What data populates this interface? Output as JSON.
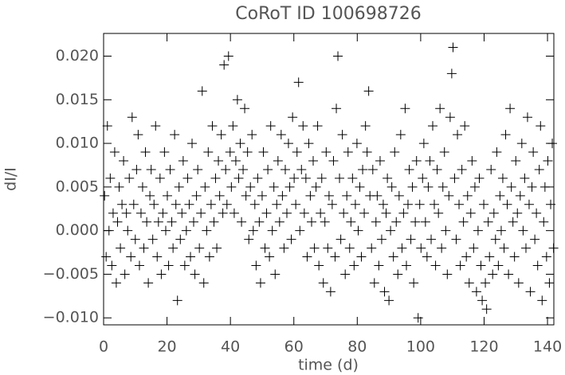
{
  "chart_data": {
    "type": "scatter",
    "title": "CoRoT ID 100698726",
    "xlabel": "time (d)",
    "ylabel": "dI/I",
    "color": "#000000",
    "marker": "plus",
    "xlim": [
      0,
      142
    ],
    "xticks": [
      0,
      20,
      40,
      60,
      80,
      100,
      120,
      140
    ],
    "ylim": [
      -0.0108,
      0.0226
    ],
    "yticks": [
      {
        "value": -0.01,
        "label": "−0.010"
      },
      {
        "value": -0.005,
        "label": "−0.005"
      },
      {
        "value": 0,
        "label": "0.000"
      },
      {
        "value": 0.005,
        "label": "0.005"
      },
      {
        "value": 0.01,
        "label": "0.010"
      },
      {
        "value": 0.015,
        "label": "0.015"
      },
      {
        "value": 0.02,
        "label": "0.020"
      }
    ],
    "x": [
      0.3,
      0.8,
      1.2,
      1.7,
      2.1,
      2.6,
      3.0,
      3.5,
      4.0,
      4.4,
      4.9,
      5.3,
      5.8,
      6.3,
      6.7,
      7.2,
      7.6,
      8.1,
      8.6,
      9.0,
      9.5,
      10.0,
      10.4,
      10.9,
      11.3,
      11.8,
      12.3,
      12.7,
      13.2,
      13.6,
      14.1,
      14.6,
      15.0,
      15.5,
      15.9,
      16.4,
      16.9,
      17.3,
      17.8,
      18.2,
      18.7,
      19.2,
      19.6,
      20.1,
      20.5,
      21.0,
      21.5,
      21.9,
      22.4,
      22.8,
      23.3,
      23.8,
      24.2,
      24.7,
      25.1,
      25.6,
      26.1,
      26.5,
      27.0,
      27.4,
      27.9,
      28.4,
      28.8,
      29.3,
      29.7,
      30.2,
      30.7,
      31.1,
      31.6,
      32.0,
      32.5,
      33.0,
      33.4,
      33.9,
      34.3,
      34.8,
      35.3,
      35.7,
      36.2,
      36.6,
      37.1,
      37.6,
      38.0,
      38.5,
      38.9,
      39.4,
      39.9,
      40.3,
      40.8,
      41.2,
      41.7,
      42.2,
      42.6,
      43.1,
      43.5,
      44.0,
      44.5,
      44.9,
      45.4,
      45.8,
      46.3,
      46.8,
      47.2,
      47.7,
      48.1,
      48.6,
      49.1,
      49.5,
      50.0,
      50.4,
      50.9,
      51.4,
      51.8,
      52.3,
      52.7,
      53.2,
      53.7,
      54.1,
      54.6,
      55.0,
      55.5,
      56.0,
      56.4,
      56.9,
      57.3,
      57.8,
      58.3,
      58.7,
      59.2,
      59.6,
      60.1,
      60.6,
      61.0,
      61.5,
      61.9,
      62.4,
      62.9,
      63.3,
      63.8,
      64.2,
      64.7,
      65.2,
      65.6,
      66.1,
      66.5,
      67.0,
      67.5,
      67.9,
      68.4,
      68.8,
      69.3,
      69.8,
      70.2,
      70.7,
      71.1,
      71.6,
      72.1,
      72.5,
      73.0,
      73.4,
      73.9,
      74.4,
      74.8,
      75.3,
      75.7,
      76.2,
      76.7,
      77.1,
      77.6,
      78.0,
      78.5,
      79.0,
      79.4,
      79.9,
      80.3,
      80.8,
      81.3,
      81.7,
      82.2,
      82.6,
      83.1,
      83.6,
      84.0,
      84.5,
      84.9,
      85.4,
      85.9,
      86.3,
      86.8,
      87.2,
      87.7,
      88.2,
      88.6,
      89.1,
      89.5,
      90.0,
      90.5,
      90.9,
      91.4,
      91.8,
      92.3,
      92.8,
      93.2,
      93.7,
      94.1,
      94.6,
      95.1,
      95.5,
      96.0,
      96.4,
      96.9,
      97.4,
      97.8,
      98.3,
      98.7,
      99.2,
      99.7,
      100.1,
      100.6,
      101.0,
      101.5,
      102.0,
      102.4,
      102.9,
      103.3,
      103.8,
      104.3,
      104.7,
      105.2,
      105.6,
      106.1,
      106.6,
      107.0,
      107.5,
      107.9,
      108.4,
      108.9,
      109.3,
      109.8,
      110.2,
      110.7,
      111.2,
      111.6,
      112.1,
      112.5,
      113.0,
      113.5,
      113.9,
      114.4,
      114.8,
      115.3,
      115.8,
      116.2,
      116.7,
      117.1,
      117.6,
      118.1,
      118.5,
      119.0,
      119.4,
      119.9,
      120.4,
      120.8,
      121.3,
      121.7,
      122.2,
      122.7,
      123.1,
      123.6,
      124.0,
      124.5,
      125.0,
      125.4,
      125.9,
      126.3,
      126.8,
      127.3,
      127.7,
      128.2,
      128.6,
      129.1,
      129.6,
      130.0,
      130.5,
      130.9,
      131.4,
      131.9,
      132.3,
      132.8,
      133.2,
      133.7,
      134.2,
      134.6,
      135.1,
      135.5,
      136.0,
      136.5,
      136.9,
      137.4,
      137.8,
      138.3,
      138.8,
      139.2,
      139.7,
      140.1,
      140.6,
      141.0,
      141.5,
      141.9
    ],
    "values": [
      0.004,
      -0.003,
      0.012,
      0.0,
      0.006,
      -0.004,
      0.002,
      0.009,
      -0.006,
      0.001,
      0.005,
      -0.002,
      0.003,
      0.008,
      -0.005,
      0.002,
      0.0,
      0.006,
      -0.003,
      0.013,
      0.003,
      -0.001,
      0.007,
      0.011,
      -0.004,
      0.002,
      0.005,
      -0.002,
      0.009,
      0.001,
      -0.006,
      0.004,
      0.007,
      -0.001,
      0.003,
      0.012,
      -0.003,
      0.001,
      0.006,
      -0.005,
      0.002,
      0.009,
      0.0,
      0.004,
      -0.004,
      0.007,
      0.001,
      -0.002,
      0.011,
      0.003,
      -0.008,
      0.005,
      -0.001,
      0.002,
      0.008,
      -0.004,
      0.0,
      0.006,
      0.003,
      -0.003,
      0.01,
      0.001,
      -0.005,
      0.004,
      0.007,
      -0.002,
      0.002,
      0.016,
      -0.006,
      0.005,
      0.0,
      0.009,
      -0.003,
      0.003,
      0.012,
      0.001,
      0.006,
      -0.002,
      0.008,
      0.004,
      0.011,
      0.002,
      0.019,
      0.007,
      0.003,
      0.02,
      0.009,
      0.005,
      0.012,
      0.002,
      0.008,
      0.015,
      0.006,
      0.01,
      0.001,
      0.007,
      0.014,
      0.004,
      0.009,
      -0.001,
      0.005,
      0.011,
      0.0,
      0.003,
      -0.004,
      0.006,
      0.001,
      -0.006,
      0.004,
      0.009,
      -0.002,
      0.002,
      0.007,
      -0.003,
      0.012,
      0.0,
      0.005,
      -0.005,
      0.003,
      0.008,
      0.001,
      0.011,
      0.004,
      -0.002,
      0.007,
      0.002,
      0.01,
      0.005,
      -0.001,
      0.013,
      0.006,
      0.003,
      0.009,
      0.017,
      0.0,
      0.007,
      0.012,
      0.002,
      0.006,
      -0.003,
      0.01,
      0.004,
      0.001,
      0.008,
      -0.002,
      0.005,
      0.012,
      -0.004,
      0.002,
      0.006,
      -0.006,
      0.001,
      0.009,
      -0.002,
      0.004,
      -0.007,
      0.003,
      0.008,
      -0.003,
      0.014,
      0.02,
      0.006,
      -0.001,
      0.011,
      0.002,
      -0.005,
      0.004,
      0.009,
      -0.002,
      0.001,
      0.006,
      -0.004,
      0.003,
      0.01,
      0.0,
      0.005,
      -0.003,
      0.007,
      0.002,
      0.012,
      0.009,
      0.016,
      0.004,
      -0.002,
      0.007,
      -0.006,
      0.001,
      0.004,
      -0.004,
      0.008,
      -0.001,
      0.003,
      -0.007,
      0.002,
      0.006,
      -0.008,
      0.0,
      0.005,
      -0.003,
      0.009,
      0.001,
      -0.005,
      0.004,
      0.011,
      -0.002,
      0.002,
      0.014,
      -0.004,
      0.003,
      0.007,
      -0.001,
      0.005,
      -0.006,
      0.001,
      0.008,
      -0.01,
      0.003,
      -0.002,
      0.006,
      0.01,
      0.001,
      -0.003,
      0.005,
      0.008,
      -0.001,
      0.012,
      0.003,
      -0.004,
      0.007,
      0.002,
      0.014,
      -0.002,
      0.005,
      0.009,
      0.0,
      -0.005,
      0.004,
      0.013,
      0.018,
      0.021,
      0.006,
      -0.001,
      0.011,
      0.003,
      -0.004,
      0.007,
      0.001,
      0.012,
      -0.003,
      0.004,
      -0.006,
      0.002,
      0.008,
      -0.002,
      0.005,
      -0.007,
      0.0,
      0.006,
      -0.004,
      -0.008,
      0.003,
      -0.006,
      -0.009,
      0.001,
      -0.003,
      0.007,
      -0.005,
      0.002,
      -0.001,
      0.009,
      -0.004,
      0.004,
      0.0,
      0.006,
      -0.002,
      0.011,
      0.003,
      -0.005,
      0.014,
      0.005,
      0.001,
      -0.003,
      0.008,
      0.002,
      -0.006,
      0.004,
      0.01,
      0.0,
      0.006,
      -0.002,
      0.013,
      0.003,
      -0.007,
      0.005,
      0.009,
      -0.001,
      0.002,
      -0.004,
      0.007,
      0.012,
      -0.008,
      0.001,
      0.005,
      -0.003,
      0.008,
      -0.006,
      0.003,
      0.01,
      -0.002
    ]
  }
}
